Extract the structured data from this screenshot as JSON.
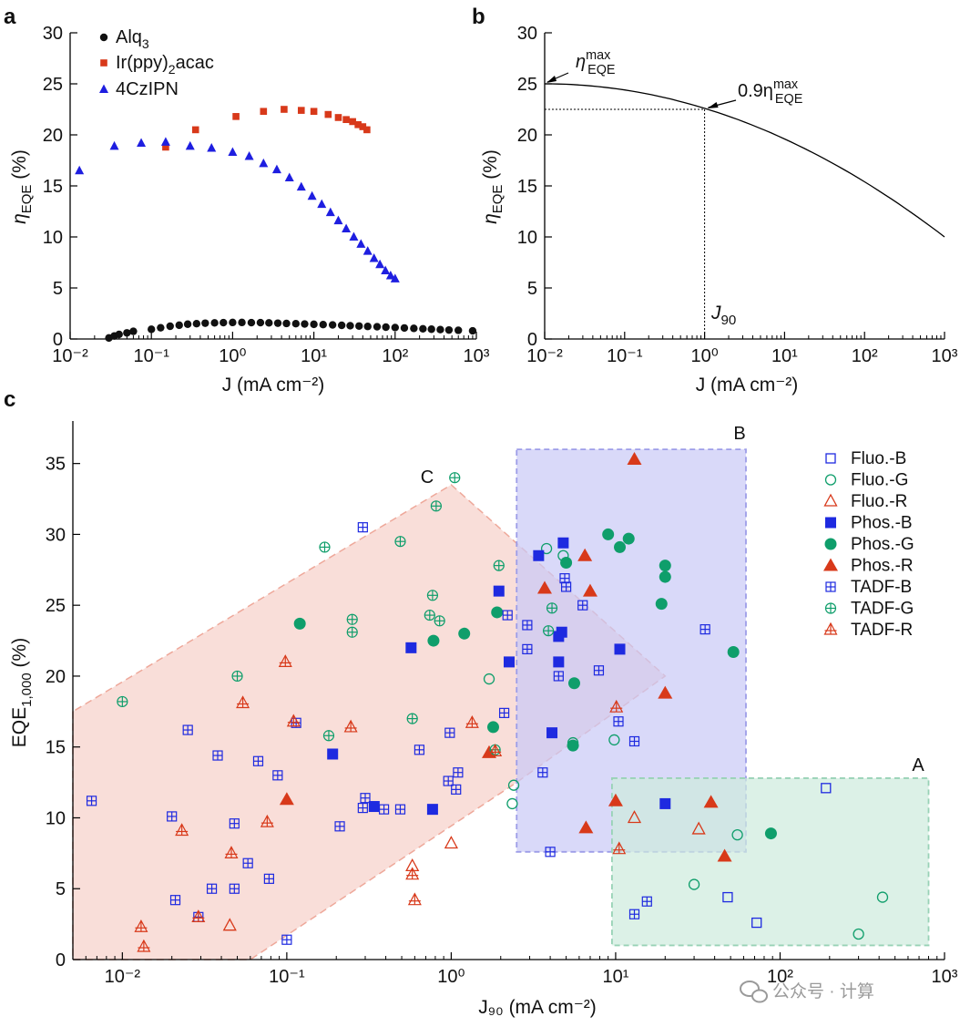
{
  "panels": {
    "a": "a",
    "b": "b",
    "c": "c"
  },
  "watermark": "公众号 · 计算",
  "colors": {
    "alq3": "#111111",
    "ir": "#d8391a",
    "cz": "#1e1ee0",
    "blue": "#1e2ae0",
    "green": "#0f9e6b",
    "red": "#d8391a",
    "region_red": "#f7d3cc",
    "region_blue": "#c9c9f6",
    "region_green": "#cdebdd"
  },
  "chart_data": [
    {
      "panel": "a",
      "type": "scatter",
      "x_scale": "log",
      "xlim": [
        0.01,
        1000
      ],
      "ylim": [
        0,
        30
      ],
      "xlabel": "J (mA cm⁻²)",
      "ylabel": "ηEQE (%)",
      "yticks": [
        "0",
        "5",
        "10",
        "15",
        "20",
        "25",
        "30"
      ],
      "xticks": [
        "10⁻²",
        "10⁻¹",
        "10⁰",
        "10¹",
        "10²",
        "10³"
      ],
      "legend": [
        "Alq₃",
        "Ir(ppy)₂acac",
        "4CzIPN"
      ],
      "series": [
        {
          "name": "Alq3",
          "marker": "circle",
          "color": "#111111",
          "points": [
            [
              0.03,
              0.1
            ],
            [
              0.035,
              0.3
            ],
            [
              0.04,
              0.45
            ],
            [
              0.05,
              0.6
            ],
            [
              0.06,
              0.75
            ],
            [
              0.1,
              0.95
            ],
            [
              0.13,
              1.1
            ],
            [
              0.17,
              1.25
            ],
            [
              0.22,
              1.35
            ],
            [
              0.28,
              1.45
            ],
            [
              0.36,
              1.5
            ],
            [
              0.46,
              1.55
            ],
            [
              0.6,
              1.58
            ],
            [
              0.77,
              1.6
            ],
            [
              1.0,
              1.62
            ],
            [
              1.3,
              1.62
            ],
            [
              1.7,
              1.6
            ],
            [
              2.2,
              1.6
            ],
            [
              2.8,
              1.58
            ],
            [
              3.6,
              1.55
            ],
            [
              4.6,
              1.52
            ],
            [
              6.0,
              1.5
            ],
            [
              7.7,
              1.47
            ],
            [
              10,
              1.44
            ],
            [
              13,
              1.41
            ],
            [
              17,
              1.38
            ],
            [
              22,
              1.34
            ],
            [
              28,
              1.3
            ],
            [
              36,
              1.27
            ],
            [
              46,
              1.23
            ],
            [
              60,
              1.2
            ],
            [
              77,
              1.16
            ],
            [
              100,
              1.12
            ],
            [
              130,
              1.08
            ],
            [
              170,
              1.04
            ],
            [
              220,
              1.0
            ],
            [
              280,
              0.96
            ],
            [
              360,
              0.92
            ],
            [
              460,
              0.88
            ],
            [
              600,
              0.85
            ],
            [
              900,
              0.8
            ]
          ]
        },
        {
          "name": "Ir(ppy)2acac",
          "marker": "square",
          "color": "#d8391a",
          "points": [
            [
              0.15,
              18.8
            ],
            [
              0.35,
              20.5
            ],
            [
              1.1,
              21.8
            ],
            [
              2.4,
              22.3
            ],
            [
              4.3,
              22.5
            ],
            [
              7,
              22.4
            ],
            [
              10,
              22.3
            ],
            [
              15,
              22.0
            ],
            [
              20,
              21.7
            ],
            [
              25,
              21.5
            ],
            [
              30,
              21.3
            ],
            [
              35,
              21.0
            ],
            [
              40,
              20.8
            ],
            [
              45,
              20.5
            ]
          ]
        },
        {
          "name": "4CzIPN",
          "marker": "triangle",
          "color": "#1e1ee0",
          "points": [
            [
              0.013,
              16.5
            ],
            [
              0.035,
              18.9
            ],
            [
              0.075,
              19.2
            ],
            [
              0.15,
              19.3
            ],
            [
              0.3,
              18.9
            ],
            [
              0.55,
              18.7
            ],
            [
              1.0,
              18.3
            ],
            [
              1.6,
              17.9
            ],
            [
              2.4,
              17.2
            ],
            [
              3.5,
              16.6
            ],
            [
              5,
              15.8
            ],
            [
              7,
              14.9
            ],
            [
              9.5,
              14.0
            ],
            [
              12.5,
              13.2
            ],
            [
              16,
              12.4
            ],
            [
              20,
              11.6
            ],
            [
              25,
              10.8
            ],
            [
              31,
              10.0
            ],
            [
              38,
              9.3
            ],
            [
              46,
              8.6
            ],
            [
              55,
              7.9
            ],
            [
              65,
              7.3
            ],
            [
              76,
              6.7
            ],
            [
              88,
              6.2
            ],
            [
              100,
              5.9
            ]
          ]
        }
      ]
    },
    {
      "panel": "b",
      "type": "line",
      "x_scale": "log",
      "xlim": [
        0.01,
        1000
      ],
      "ylim": [
        0,
        30
      ],
      "xlabel": "J (mA cm⁻²)",
      "ylabel": "ηEQE (%)",
      "yticks": [
        "0",
        "5",
        "10",
        "15",
        "20",
        "25",
        "30"
      ],
      "xticks": [
        "10⁻²",
        "10⁻¹",
        "10⁰",
        "10¹",
        "10²",
        "10³"
      ],
      "curve": {
        "y_start": 25,
        "y_end": 10,
        "note": "quadratic decay in log J"
      },
      "max_point": {
        "x": 0.01,
        "y": 25
      },
      "j90_point": {
        "x": 1.0,
        "y": 22.5
      },
      "annotations": {
        "max_base": "η",
        "max_sub": "EQE",
        "max_sup": "max",
        "j90_prefix": "0.9η",
        "j90_sub": "EQE",
        "j90_sup": "max",
        "j90_label": "J",
        "j90_label_sub": "90"
      }
    },
    {
      "panel": "c",
      "type": "scatter",
      "x_scale": "log",
      "xlim": [
        0.005,
        1000
      ],
      "ylim": [
        0,
        38
      ],
      "xlabel": "J₉₀ (mA cm⁻²)",
      "ylabel": "EQE₁,₀₀₀ (%)",
      "yticks": [
        "0",
        "5",
        "10",
        "15",
        "20",
        "25",
        "30",
        "35"
      ],
      "xticks": [
        "10⁻²",
        "10⁻¹",
        "10⁰",
        "10¹",
        "10²",
        "10³"
      ],
      "regions": [
        {
          "label": "C",
          "polygon": [
            [
              0.005,
              17.5
            ],
            [
              0.005,
              0
            ],
            [
              0.06,
              0
            ],
            [
              2.5,
              12.5
            ],
            [
              20,
              20
            ],
            [
              1.0,
              33.5
            ]
          ],
          "fill": "#f7d3cc",
          "stroke": "#eea89a"
        },
        {
          "label": "B",
          "x": [
            2.5,
            62
          ],
          "y": [
            7.6,
            36
          ],
          "fill": "#c9c9f6",
          "stroke": "#9d9de8"
        },
        {
          "label": "A",
          "x": [
            9.5,
            800
          ],
          "y": [
            1.0,
            12.8
          ],
          "fill": "#cdebdd",
          "stroke": "#98d2b6"
        }
      ],
      "series": [
        {
          "name": "Fluo.-B",
          "marker": "open-square",
          "color": "#1e2ae0",
          "points": [
            [
              190,
              12.1
            ],
            [
              48,
              4.4
            ],
            [
              72,
              2.6
            ]
          ]
        },
        {
          "name": "Fluo.-G",
          "marker": "open-circle",
          "color": "#0f9e6b",
          "points": [
            [
              1.7,
              19.8
            ],
            [
              2.4,
              12.3
            ],
            [
              2.35,
              11.0
            ],
            [
              9.8,
              15.5
            ],
            [
              55,
              8.8
            ],
            [
              30,
              5.3
            ],
            [
              420,
              4.4
            ],
            [
              300,
              1.8
            ],
            [
              5.5,
              15.3
            ],
            [
              3.8,
              29.0
            ],
            [
              4.8,
              28.5
            ]
          ]
        },
        {
          "name": "Fluo.-R",
          "marker": "open-triangle",
          "color": "#d8391a",
          "points": [
            [
              0.045,
              2.4
            ],
            [
              1.0,
              8.2
            ],
            [
              0.58,
              6.6
            ],
            [
              13,
              10.0
            ],
            [
              32,
              9.2
            ]
          ]
        },
        {
          "name": "Phos.-B",
          "marker": "filled-square",
          "color": "#1e2ae0",
          "points": [
            [
              0.57,
              22.0
            ],
            [
              0.19,
              14.5
            ],
            [
              0.34,
              10.8
            ],
            [
              0.77,
              10.6
            ],
            [
              1.95,
              26.0
            ],
            [
              2.25,
              21.0
            ],
            [
              3.4,
              28.5
            ],
            [
              4.8,
              29.4
            ],
            [
              4.7,
              23.1
            ],
            [
              4.5,
              22.8
            ],
            [
              4.5,
              21.0
            ],
            [
              4.1,
              16.0
            ],
            [
              10.6,
              21.9
            ],
            [
              20,
              11.0
            ]
          ]
        },
        {
          "name": "Phos.-G",
          "marker": "filled-circle",
          "color": "#0f9e6b",
          "points": [
            [
              0.12,
              23.7
            ],
            [
              0.78,
              22.5
            ],
            [
              1.2,
              23.0
            ],
            [
              1.9,
              24.5
            ],
            [
              1.8,
              16.4
            ],
            [
              5,
              28.0
            ],
            [
              9,
              30.0
            ],
            [
              12,
              29.7
            ],
            [
              10.6,
              29.1
            ],
            [
              20,
              27.8
            ],
            [
              20,
              27.0
            ],
            [
              19,
              25.1
            ],
            [
              5.6,
              19.5
            ],
            [
              5.5,
              15.1
            ],
            [
              52,
              21.7
            ],
            [
              88,
              8.9
            ]
          ]
        },
        {
          "name": "Phos.-R",
          "marker": "filled-triangle",
          "color": "#d8391a",
          "points": [
            [
              13,
              35.3
            ],
            [
              6.5,
              28.5
            ],
            [
              3.7,
              26.2
            ],
            [
              7,
              26.0
            ],
            [
              20,
              18.8
            ],
            [
              0.1,
              11.3
            ],
            [
              1.7,
              14.6
            ],
            [
              6.6,
              9.3
            ],
            [
              10,
              11.2
            ],
            [
              38,
              11.1
            ],
            [
              46,
              7.3
            ]
          ]
        },
        {
          "name": "TADF-B",
          "marker": "boxplus",
          "color": "#1e2ae0",
          "points": [
            [
              0.0065,
              11.2
            ],
            [
              0.02,
              10.1
            ],
            [
              0.021,
              4.2
            ],
            [
              0.025,
              16.2
            ],
            [
              0.029,
              3.0
            ],
            [
              0.035,
              5.0
            ],
            [
              0.038,
              14.4
            ],
            [
              0.048,
              9.6
            ],
            [
              0.048,
              5.0
            ],
            [
              0.058,
              6.8
            ],
            [
              0.067,
              14.0
            ],
            [
              0.078,
              5.7
            ],
            [
              0.088,
              13.0
            ],
            [
              0.1,
              1.4
            ],
            [
              0.114,
              16.7
            ],
            [
              0.21,
              9.4
            ],
            [
              0.29,
              30.5
            ],
            [
              0.3,
              11.4
            ],
            [
              0.29,
              10.7
            ],
            [
              0.39,
              10.6
            ],
            [
              0.49,
              10.6
            ],
            [
              0.64,
              14.8
            ],
            [
              0.98,
              16.0
            ],
            [
              0.96,
              12.6
            ],
            [
              1.07,
              12.0
            ],
            [
              1.1,
              13.2
            ],
            [
              2.1,
              17.4
            ],
            [
              2.2,
              24.3
            ],
            [
              2.9,
              23.6
            ],
            [
              2.9,
              21.9
            ],
            [
              3.6,
              13.2
            ],
            [
              4.0,
              7.6
            ],
            [
              4.5,
              20.0
            ],
            [
              4.9,
              26.9
            ],
            [
              5,
              26.3
            ],
            [
              6.3,
              25.0
            ],
            [
              7.9,
              20.4
            ],
            [
              10.4,
              16.8
            ],
            [
              13,
              15.4
            ],
            [
              13,
              3.2
            ],
            [
              15.5,
              4.1
            ],
            [
              35,
              23.3
            ]
          ]
        },
        {
          "name": "TADF-G",
          "marker": "circleplus",
          "color": "#0f9e6b",
          "points": [
            [
              0.01,
              18.2
            ],
            [
              0.05,
              20.0
            ],
            [
              0.17,
              29.1
            ],
            [
              0.18,
              15.8
            ],
            [
              0.25,
              24.0
            ],
            [
              0.25,
              23.1
            ],
            [
              0.49,
              29.5
            ],
            [
              0.58,
              17.0
            ],
            [
              0.74,
              24.3
            ],
            [
              0.77,
              25.7
            ],
            [
              0.81,
              32.0
            ],
            [
              0.85,
              23.9
            ],
            [
              1.05,
              34.0
            ],
            [
              1.95,
              27.8
            ],
            [
              1.85,
              14.8
            ],
            [
              3.9,
              23.2
            ],
            [
              4.1,
              24.8
            ]
          ]
        },
        {
          "name": "TADF-R",
          "marker": "triangleplus",
          "color": "#d8391a",
          "points": [
            [
              0.013,
              2.3
            ],
            [
              0.0135,
              0.9
            ],
            [
              0.023,
              9.1
            ],
            [
              0.029,
              3.0
            ],
            [
              0.046,
              7.5
            ],
            [
              0.054,
              18.1
            ],
            [
              0.076,
              9.7
            ],
            [
              0.098,
              21.0
            ],
            [
              0.11,
              16.8
            ],
            [
              0.245,
              16.4
            ],
            [
              0.58,
              6.0
            ],
            [
              0.6,
              4.2
            ],
            [
              1.34,
              16.7
            ],
            [
              1.85,
              14.7
            ],
            [
              10.1,
              17.8
            ],
            [
              10.5,
              7.8
            ]
          ]
        }
      ],
      "legend": [
        "Fluo.-B",
        "Fluo.-G",
        "Fluo.-R",
        "Phos.-B",
        "Phos.-G",
        "Phos.-R",
        "TADF-B",
        "TADF-G",
        "TADF-R"
      ]
    }
  ]
}
